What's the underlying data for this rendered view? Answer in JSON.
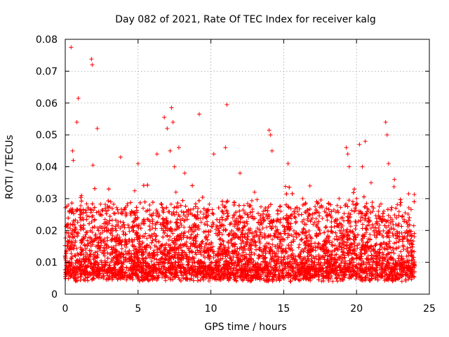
{
  "chart_data": {
    "type": "scatter",
    "title": "Day 082 of 2021, Rate Of TEC Index for receiver kalg",
    "xlabel": "GPS time / hours",
    "ylabel": "ROTI / TECUs",
    "xlim": [
      0,
      25
    ],
    "ylim": [
      0,
      0.08
    ],
    "xticks": [
      0,
      5,
      10,
      15,
      20,
      25
    ],
    "yticks": [
      0,
      0.01,
      0.02,
      0.03,
      0.04,
      0.05,
      0.06,
      0.07,
      0.08
    ],
    "xtick_labels": [
      "0",
      "5",
      "10",
      "15",
      "20",
      "25"
    ],
    "ytick_labels": [
      "0",
      "0.01",
      "0.02",
      "0.03",
      "0.04",
      "0.05",
      "0.06",
      "0.07",
      "0.08"
    ],
    "grid": true,
    "marker": "+",
    "color": "#ff0000",
    "series": [
      {
        "name": "kalg",
        "x": [
          0.0,
          0.2,
          0.3,
          0.4,
          0.5,
          0.55,
          0.6,
          0.8,
          0.9,
          1.0,
          1.2,
          1.5,
          1.8,
          1.85,
          1.9,
          2.0,
          2.2,
          2.5,
          2.8,
          3.0,
          3.2,
          3.5,
          3.8,
          4.0,
          4.2,
          4.5,
          4.8,
          5.0,
          5.2,
          5.5,
          5.8,
          6.0,
          6.3,
          6.5,
          6.8,
          7.0,
          7.2,
          7.3,
          7.4,
          7.5,
          7.6,
          7.8,
          8.0,
          8.2,
          8.5,
          8.8,
          9.0,
          9.2,
          9.5,
          9.8,
          10.0,
          10.2,
          10.5,
          10.8,
          11.0,
          11.1,
          11.3,
          11.5,
          11.8,
          12.0,
          12.3,
          12.5,
          12.8,
          13.0,
          13.3,
          13.5,
          13.8,
          14.0,
          14.1,
          14.2,
          14.5,
          14.8,
          15.0,
          15.3,
          15.5,
          15.8,
          16.0,
          16.3,
          16.5,
          16.8,
          17.0,
          17.3,
          17.5,
          17.8,
          18.0,
          18.3,
          18.5,
          18.8,
          19.0,
          19.3,
          19.4,
          19.5,
          19.8,
          20.0,
          20.2,
          20.4,
          20.6,
          20.8,
          21.0,
          21.3,
          21.5,
          21.8,
          22.0,
          22.1,
          22.2,
          22.4,
          22.6,
          22.8,
          23.0,
          23.3,
          23.5,
          23.8
        ],
        "y": [
          0.012,
          0.028,
          0.009,
          0.0775,
          0.045,
          0.042,
          0.015,
          0.054,
          0.0615,
          0.011,
          0.024,
          0.009,
          0.0738,
          0.072,
          0.0405,
          0.012,
          0.052,
          0.01,
          0.026,
          0.009,
          0.014,
          0.02,
          0.043,
          0.01,
          0.025,
          0.011,
          0.008,
          0.041,
          0.015,
          0.009,
          0.028,
          0.012,
          0.044,
          0.01,
          0.0555,
          0.052,
          0.045,
          0.0585,
          0.054,
          0.04,
          0.032,
          0.046,
          0.012,
          0.038,
          0.01,
          0.0268,
          0.015,
          0.0565,
          0.012,
          0.026,
          0.01,
          0.044,
          0.011,
          0.028,
          0.046,
          0.0595,
          0.012,
          0.024,
          0.009,
          0.038,
          0.011,
          0.025,
          0.01,
          0.032,
          0.012,
          0.022,
          0.009,
          0.0515,
          0.05,
          0.045,
          0.011,
          0.026,
          0.01,
          0.041,
          0.012,
          0.024,
          0.009,
          0.03,
          0.011,
          0.034,
          0.01,
          0.022,
          0.008,
          0.026,
          0.012,
          0.024,
          0.009,
          0.03,
          0.011,
          0.046,
          0.044,
          0.04,
          0.01,
          0.03,
          0.047,
          0.04,
          0.048,
          0.012,
          0.035,
          0.01,
          0.026,
          0.013,
          0.054,
          0.05,
          0.041,
          0.011,
          0.036,
          0.01,
          0.028,
          0.009,
          0.022,
          0.012
        ]
      }
    ],
    "background_band": {
      "x_range": [
        0,
        24
      ],
      "y_range": [
        0.003,
        0.034
      ],
      "description": "dense cloud of points between about 0.005 and 0.03 across the whole day"
    }
  }
}
